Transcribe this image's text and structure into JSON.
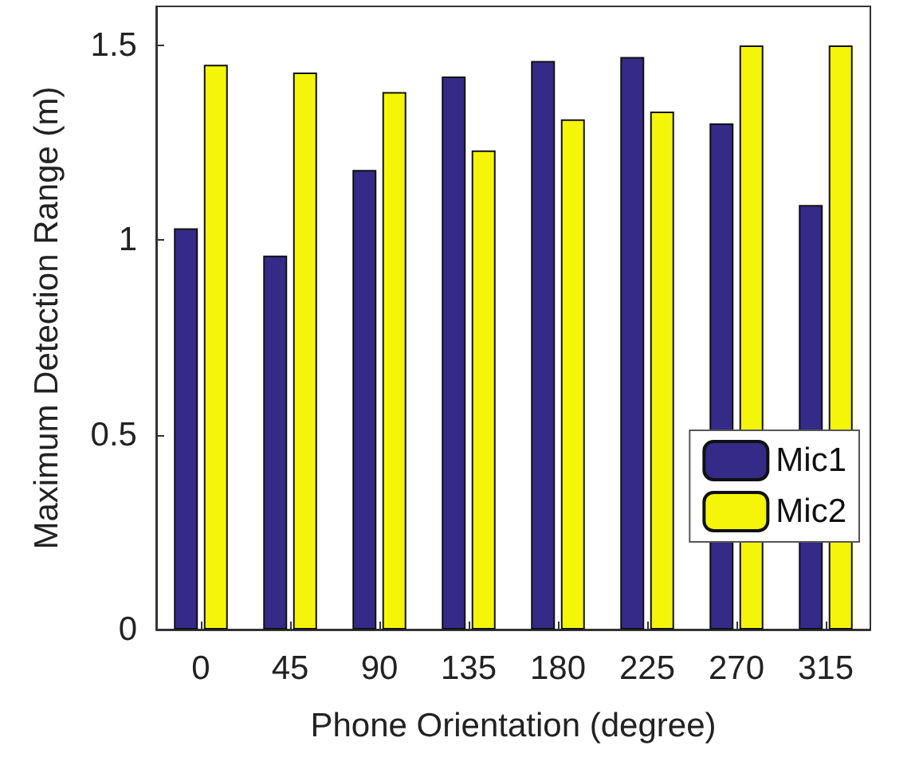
{
  "chart_data": {
    "type": "bar",
    "xlabel": "Phone Orientation (degree)",
    "ylabel": "Maximum Detection Range (m)",
    "categories": [
      "0",
      "45",
      "90",
      "135",
      "180",
      "225",
      "270",
      "315"
    ],
    "series": [
      {
        "name": "Mic1",
        "color": "#352a87",
        "values": [
          1.03,
          0.96,
          1.18,
          1.42,
          1.46,
          1.47,
          1.3,
          1.09
        ]
      },
      {
        "name": "Mic2",
        "color": "#f5f50a",
        "values": [
          1.45,
          1.43,
          1.38,
          1.23,
          1.31,
          1.33,
          1.5,
          1.5
        ]
      }
    ],
    "ylim": [
      0,
      1.6
    ],
    "yticks": [
      0,
      0.5,
      1,
      1.5
    ],
    "grid": false,
    "legend": "bottom right"
  }
}
